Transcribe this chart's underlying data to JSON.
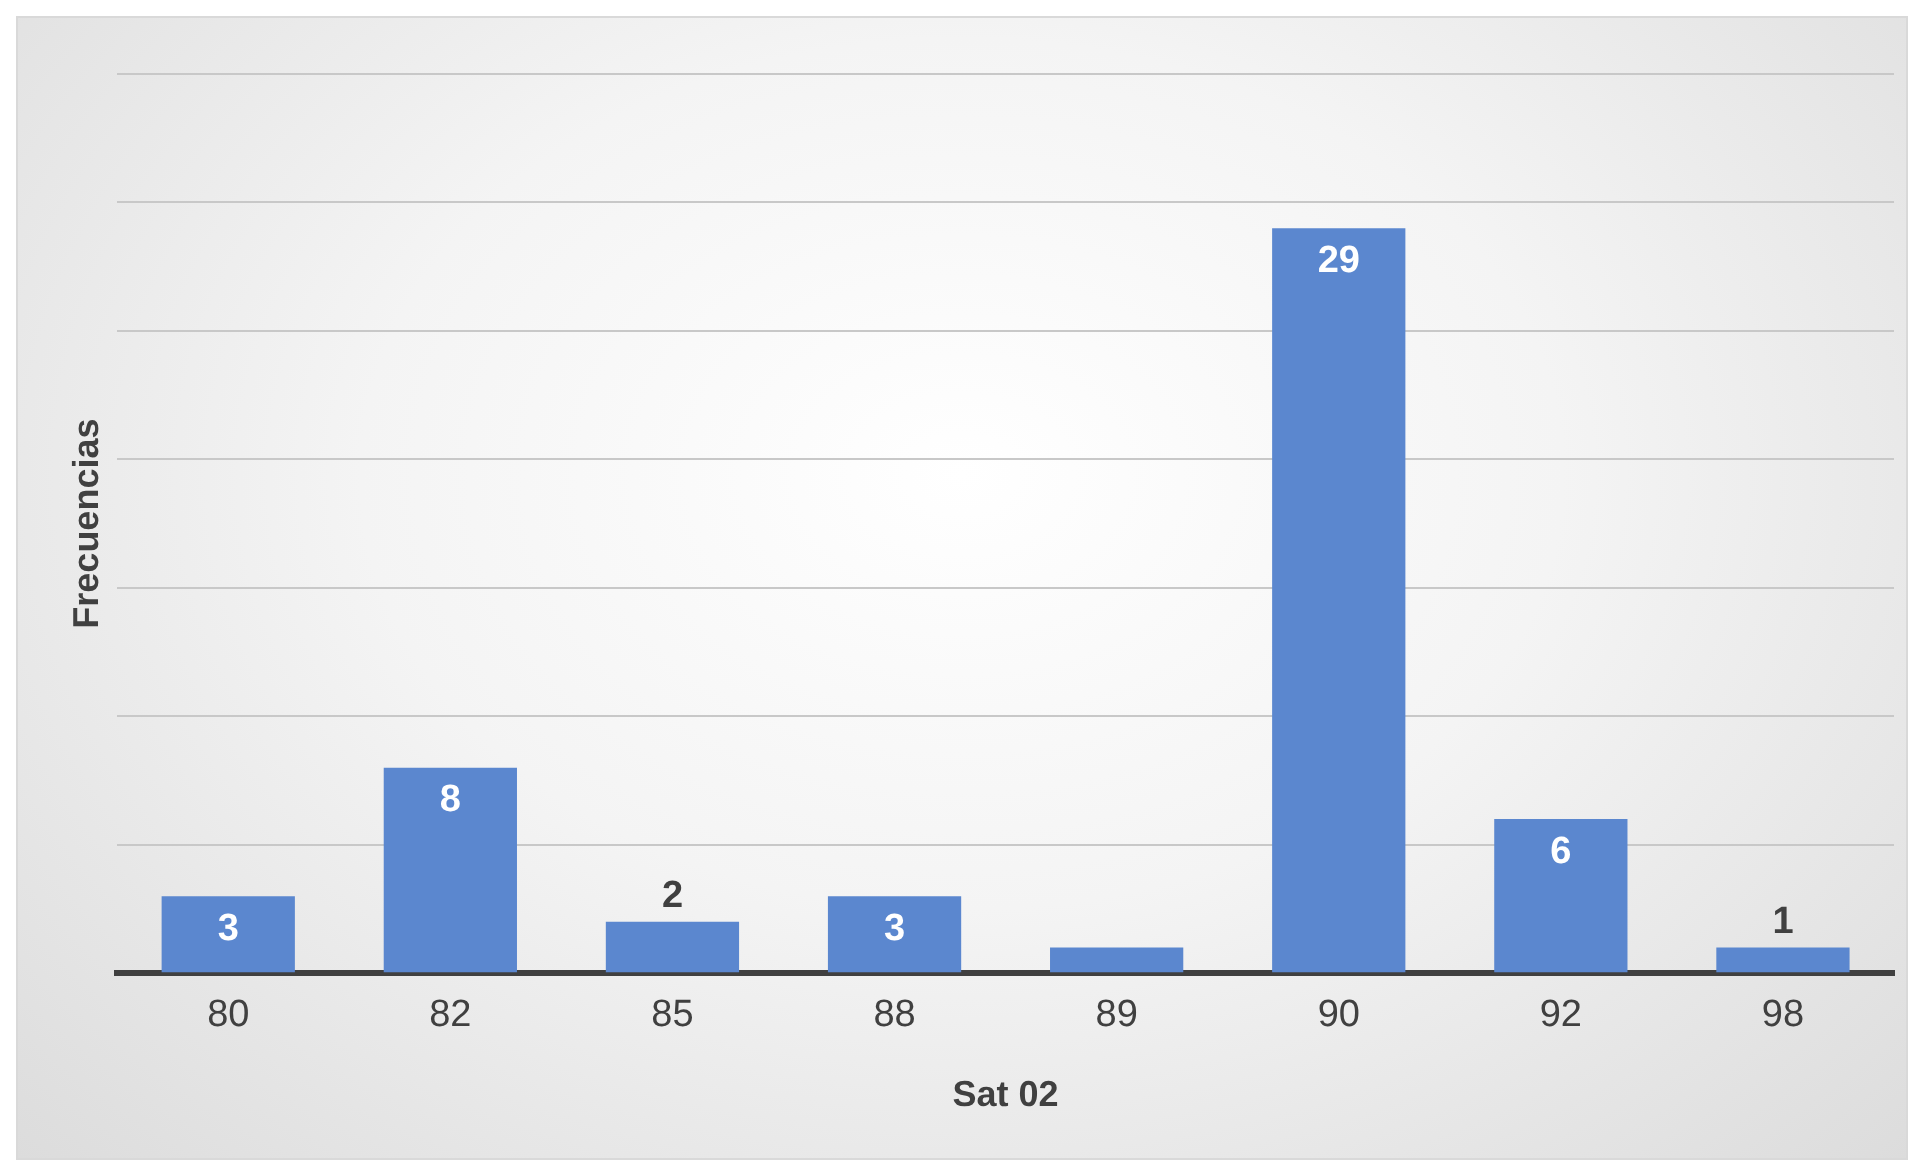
{
  "chart_data": {
    "type": "bar",
    "xlabel": "Sat 02",
    "ylabel": "Frecuencias",
    "categories": [
      "80",
      "82",
      "85",
      "88",
      "89",
      "90",
      "92",
      "98"
    ],
    "values": [
      3,
      8,
      2,
      3,
      1,
      29,
      6,
      1
    ],
    "value_labels": [
      "3",
      "8",
      "2",
      "3",
      null,
      "29",
      "6",
      "1"
    ],
    "color": "#5b87cf",
    "ylim": [
      0,
      35
    ],
    "yticks": [
      {
        "value": 0,
        "label": null
      },
      {
        "value": 5,
        "label": null
      },
      {
        "value": 10,
        "label": null
      },
      {
        "value": 15,
        "label": null
      },
      {
        "value": 20,
        "label": null
      },
      {
        "value": 25,
        "label": null
      },
      {
        "value": 30,
        "label": null
      },
      {
        "value": 35,
        "label": null
      }
    ],
    "grid": "y",
    "tick_labels": "x",
    "legend": false
  }
}
